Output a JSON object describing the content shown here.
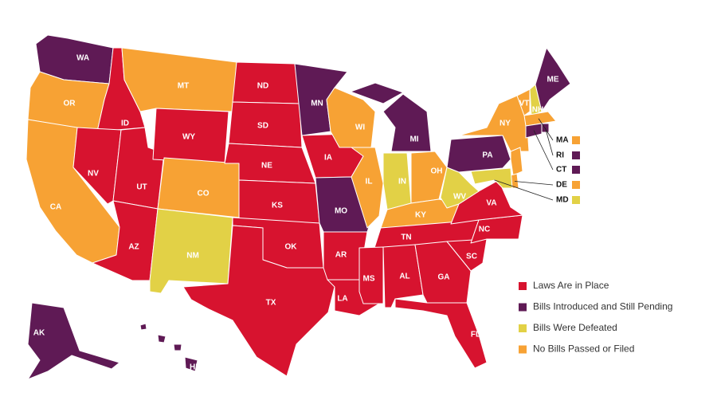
{
  "legend": [
    {
      "label": "Laws Are in Place",
      "color": "#d7132f"
    },
    {
      "label": "Bills Introduced and Still Pending",
      "color": "#5f1a55"
    },
    {
      "label": "Bills Were Defeated",
      "color": "#e2d146"
    },
    {
      "label": "No Bills Passed or Filed",
      "color": "#f7a234"
    }
  ],
  "states": [
    {
      "abbr": "WA",
      "status": "Bills Introduced and Still Pending"
    },
    {
      "abbr": "OR",
      "status": "No Bills Passed or Filed"
    },
    {
      "abbr": "CA",
      "status": "No Bills Passed or Filed"
    },
    {
      "abbr": "ID",
      "status": "Laws Are in Place"
    },
    {
      "abbr": "NV",
      "status": "Laws Are in Place"
    },
    {
      "abbr": "UT",
      "status": "Laws Are in Place"
    },
    {
      "abbr": "AZ",
      "status": "Laws Are in Place"
    },
    {
      "abbr": "MT",
      "status": "No Bills Passed or Filed"
    },
    {
      "abbr": "WY",
      "status": "Laws Are in Place"
    },
    {
      "abbr": "CO",
      "status": "No Bills Passed or Filed"
    },
    {
      "abbr": "NM",
      "status": "Bills Were Defeated"
    },
    {
      "abbr": "ND",
      "status": "Laws Are in Place"
    },
    {
      "abbr": "SD",
      "status": "Laws Are in Place"
    },
    {
      "abbr": "NE",
      "status": "Laws Are in Place"
    },
    {
      "abbr": "KS",
      "status": "Laws Are in Place"
    },
    {
      "abbr": "OK",
      "status": "Laws Are in Place"
    },
    {
      "abbr": "TX",
      "status": "Laws Are in Place"
    },
    {
      "abbr": "MN",
      "status": "Bills Introduced and Still Pending"
    },
    {
      "abbr": "IA",
      "status": "Laws Are in Place"
    },
    {
      "abbr": "MO",
      "status": "Bills Introduced and Still Pending"
    },
    {
      "abbr": "AR",
      "status": "Laws Are in Place"
    },
    {
      "abbr": "LA",
      "status": "Laws Are in Place"
    },
    {
      "abbr": "WI",
      "status": "No Bills Passed or Filed"
    },
    {
      "abbr": "IL",
      "status": "No Bills Passed or Filed"
    },
    {
      "abbr": "MI",
      "status": "Bills Introduced and Still Pending"
    },
    {
      "abbr": "IN",
      "status": "Bills Were Defeated"
    },
    {
      "abbr": "OH",
      "status": "No Bills Passed or Filed"
    },
    {
      "abbr": "KY",
      "status": "No Bills Passed or Filed"
    },
    {
      "abbr": "TN",
      "status": "Laws Are in Place"
    },
    {
      "abbr": "MS",
      "status": "Laws Are in Place"
    },
    {
      "abbr": "AL",
      "status": "Laws Are in Place"
    },
    {
      "abbr": "GA",
      "status": "Laws Are in Place"
    },
    {
      "abbr": "FL",
      "status": "Laws Are in Place"
    },
    {
      "abbr": "SC",
      "status": "Laws Are in Place"
    },
    {
      "abbr": "NC",
      "status": "Laws Are in Place"
    },
    {
      "abbr": "VA",
      "status": "Laws Are in Place"
    },
    {
      "abbr": "WV",
      "status": "Bills Were Defeated"
    },
    {
      "abbr": "PA",
      "status": "Bills Introduced and Still Pending"
    },
    {
      "abbr": "NY",
      "status": "No Bills Passed or Filed"
    },
    {
      "abbr": "VT",
      "status": "No Bills Passed or Filed"
    },
    {
      "abbr": "NH",
      "status": "Bills Were Defeated"
    },
    {
      "abbr": "ME",
      "status": "Bills Introduced and Still Pending"
    },
    {
      "abbr": "MA",
      "status": "No Bills Passed or Filed"
    },
    {
      "abbr": "RI",
      "status": "Bills Introduced and Still Pending"
    },
    {
      "abbr": "CT",
      "status": "Bills Introduced and Still Pending"
    },
    {
      "abbr": null,
      "status": "No Bills Passed or Filed"
    },
    {
      "abbr": "DE",
      "status": "No Bills Passed or Filed"
    },
    {
      "abbr": "MD",
      "status": "Bills Were Defeated"
    },
    {
      "abbr": "AK",
      "status": "Bills Introduced and Still Pending"
    },
    {
      "abbr": "HI",
      "status": "Bills Introduced and Still Pending"
    }
  ]
}
